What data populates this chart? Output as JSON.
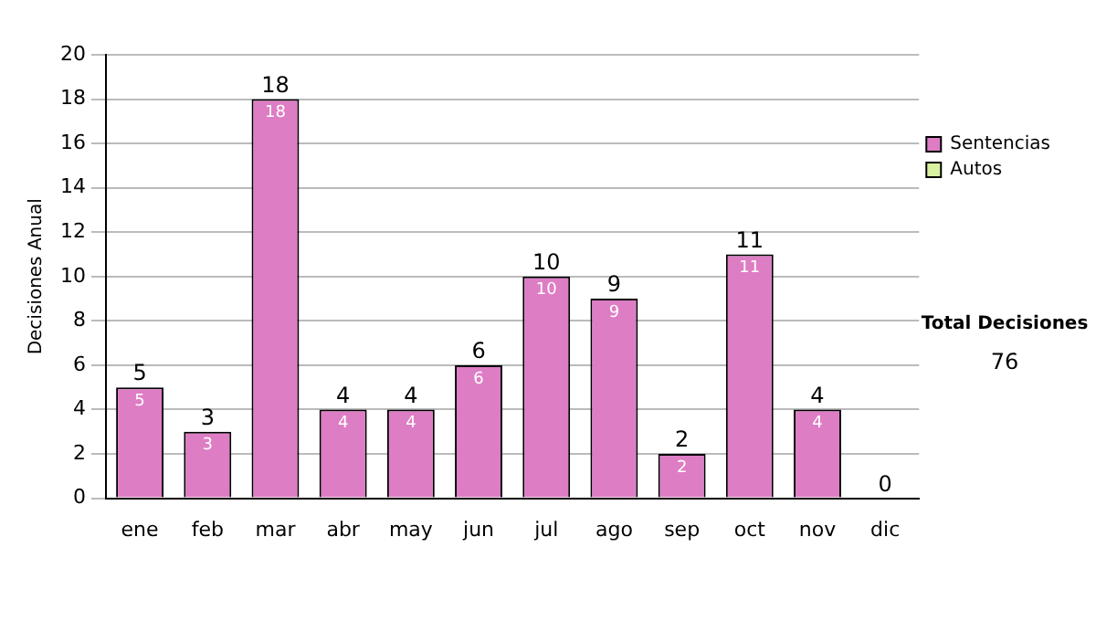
{
  "chart_data": {
    "type": "bar",
    "stacked": true,
    "ylabel": "Decisiones Anual",
    "categories": [
      "ene",
      "feb",
      "mar",
      "abr",
      "may",
      "jun",
      "jul",
      "ago",
      "sep",
      "oct",
      "nov",
      "dic"
    ],
    "series": [
      {
        "name": "Sentencias",
        "color": "#dd7dc4",
        "values": [
          5,
          3,
          18,
          4,
          4,
          6,
          10,
          9,
          2,
          11,
          4,
          0
        ],
        "value_labels": [
          "5",
          "3",
          "18",
          "4",
          "4",
          "6",
          "10",
          "9",
          "2",
          "11",
          "4",
          null
        ]
      },
      {
        "name": "Autos",
        "color": "#d8f0a0",
        "values": [
          0,
          0,
          0,
          0,
          0,
          0,
          0,
          0,
          0,
          0,
          0,
          0
        ]
      }
    ],
    "totals": [
      "5",
      "3",
      "18",
      "4",
      "4",
      "6",
      "10",
      "9",
      "2",
      "11",
      "4",
      "0"
    ],
    "ylim": [
      0,
      20
    ],
    "yticks": [
      0,
      2,
      4,
      6,
      8,
      10,
      12,
      14,
      16,
      18,
      20
    ],
    "grid": "y",
    "legend": "right",
    "annotations": [
      "Total Decisiones",
      "76"
    ]
  }
}
